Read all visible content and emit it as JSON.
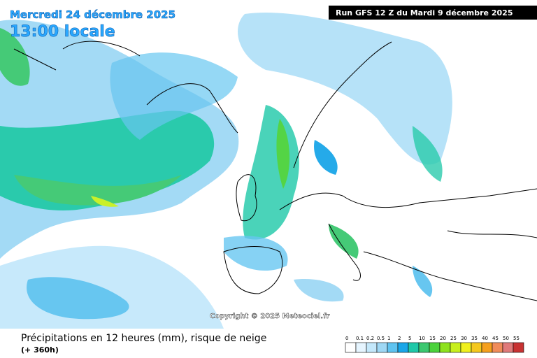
{
  "header": {
    "date": "Mercredi 24 décembre 2025",
    "time": "13:00 locale",
    "run": "Run GFS 12 Z du Mardi 9 décembre 2025"
  },
  "copyright": "Copyright © 2025 Meteociel.fr",
  "footer": {
    "title": "Précipitations en 12 heures (mm), risque de neige",
    "range": "(+ 360h)"
  },
  "legend": {
    "labels": [
      0,
      0.1,
      0.2,
      0.5,
      1,
      2,
      5,
      10,
      15,
      20,
      25,
      30,
      35,
      40,
      45,
      50,
      55
    ],
    "colors": [
      "#ffffff",
      "#e6f5ff",
      "#c4e8fb",
      "#9fd8f5",
      "#5fc3f0",
      "#1aa6e8",
      "#1fc8a8",
      "#3cc870",
      "#4bd23c",
      "#8ee21e",
      "#c8f01e",
      "#f0f01e",
      "#f5c81e",
      "#f5a01e",
      "#f08c5a",
      "#e07a7a",
      "#c83232"
    ]
  }
}
